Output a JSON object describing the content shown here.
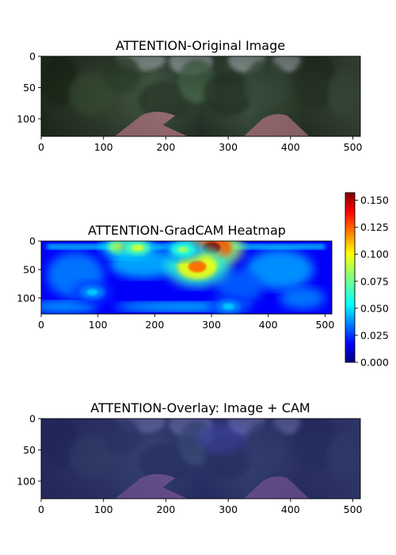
{
  "chart_data": [
    {
      "type": "image",
      "title": "ATTENTION-Original Image",
      "x_ticks": [
        0,
        100,
        200,
        300,
        400,
        500
      ],
      "y_ticks": [
        0,
        50,
        100
      ],
      "xlim": [
        0,
        512
      ],
      "ylim": [
        128,
        0
      ]
    },
    {
      "type": "heatmap",
      "title": "ATTENTION-GradCAM Heatmap",
      "x_ticks": [
        0,
        100,
        200,
        300,
        400,
        500
      ],
      "y_ticks": [
        0,
        50,
        100
      ],
      "xlim": [
        0,
        512
      ],
      "ylim": [
        128,
        0
      ],
      "colormap": "jet",
      "colorbar": {
        "range": [
          0.0,
          0.157
        ],
        "ticks": [
          "0.000",
          "0.025",
          "0.050",
          "0.075",
          "0.100",
          "0.125",
          "0.150"
        ]
      },
      "hotspots": [
        {
          "x": 300,
          "y": 12,
          "value": 0.155
        },
        {
          "x": 275,
          "y": 45,
          "value": 0.12
        },
        {
          "x": 140,
          "y": 10,
          "value": 0.1
        },
        {
          "x": 170,
          "y": 12,
          "value": 0.09
        },
        {
          "x": 250,
          "y": 15,
          "value": 0.08
        },
        {
          "x": 90,
          "y": 90,
          "value": 0.05
        },
        {
          "x": 330,
          "y": 115,
          "value": 0.05
        }
      ]
    },
    {
      "type": "image",
      "title": "ATTENTION-Overlay: Image + CAM",
      "x_ticks": [
        0,
        100,
        200,
        300,
        400,
        500
      ],
      "y_ticks": [
        0,
        50,
        100
      ],
      "xlim": [
        0,
        512
      ],
      "ylim": [
        128,
        0
      ]
    }
  ]
}
